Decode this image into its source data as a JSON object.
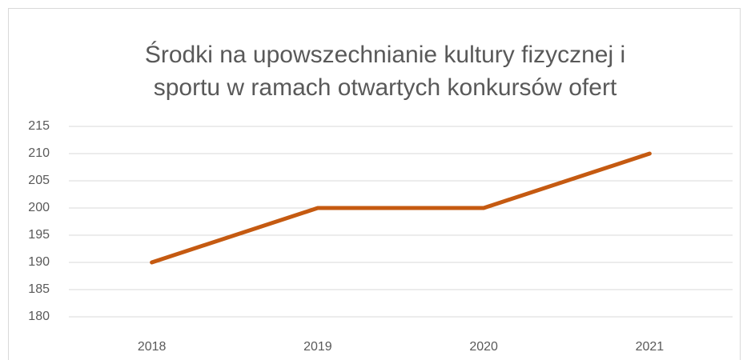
{
  "chart_data": {
    "type": "line",
    "title": [
      "Środki na upowszechnianie  kultury fizycznej i",
      "sportu w ramach otwartych konkursów ofert"
    ],
    "categories": [
      "2018",
      "2019",
      "2020",
      "2021"
    ],
    "values": [
      190,
      200,
      200,
      210
    ],
    "color": "#c55a11",
    "ylim": [
      180,
      215
    ],
    "yticks": [
      180,
      185,
      190,
      195,
      200,
      205,
      210,
      215
    ],
    "grid": true
  }
}
